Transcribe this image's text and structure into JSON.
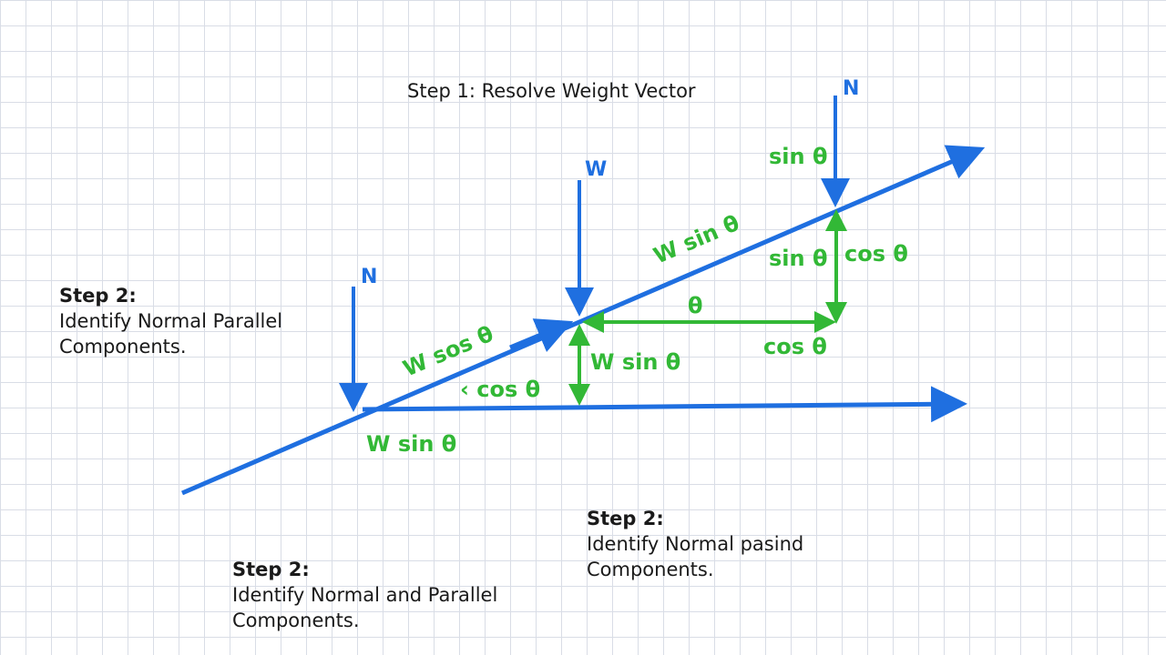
{
  "title": "Step 1: Resolve Weight Vector",
  "notes": {
    "left": {
      "heading": "Step 2:",
      "line1": "Identify Normal Parallel",
      "line2": "Components."
    },
    "bottom_left": {
      "heading": "Step 2:",
      "line1": "Identify Normal and Parallel",
      "line2": "Components."
    },
    "bottom_right": {
      "heading": "Step 2:",
      "line1": "Identify Normal pasind",
      "line2": "Components."
    }
  },
  "vector_labels": {
    "n_left": "N",
    "n_right": "N",
    "w": "W"
  },
  "component_labels": {
    "sin_top": "sin θ",
    "w_sin_incline": "W sin θ",
    "sin_mid": "sin θ",
    "cos_mid": "cos θ",
    "theta": "θ",
    "cos_right": "cos θ",
    "w_sos": "W sos θ",
    "w_sin_center": "W sin θ",
    "lt_cos": "‹ cos θ",
    "w_sin_bottom": "W sin θ"
  },
  "colors": {
    "blue": "#1f6fe0",
    "green": "#32b836",
    "text": "#1a1a1a"
  }
}
